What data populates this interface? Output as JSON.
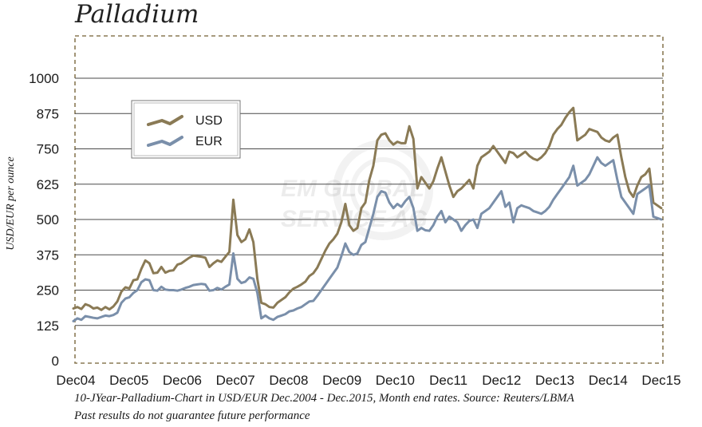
{
  "chart_data": {
    "type": "line",
    "title": "Palladium",
    "ylabel": "USD/EUR  per ounce",
    "xlabel": "",
    "x_start": "2004-12",
    "x_end": "2015-12",
    "ylim": [
      0,
      1000
    ],
    "yticks": [
      "0",
      "125",
      "250",
      "375",
      "500",
      "625",
      "750",
      "875",
      "1000"
    ],
    "xticks": [
      "Dec04",
      "Dec05",
      "Dec06",
      "Dec07",
      "Dec08",
      "Dec09",
      "Dec10",
      "Dec11",
      "Dec12",
      "Dec13",
      "Dec14",
      "Dec15"
    ],
    "grid": "horizontal",
    "legend_position": "top-left",
    "watermark": [
      "EM GLOBAL",
      "SERVICE AG"
    ],
    "footnote": [
      "10-JYear-Palladium-Chart in USD/EUR Dec.2004 - Dec.2015, Month end rates. Source: Reuters/LBMA",
      "Past results do not guarantee future performance"
    ],
    "series": [
      {
        "name": "USD",
        "color": "#8a7a55",
        "values": [
          185,
          190,
          183,
          200,
          195,
          185,
          188,
          180,
          190,
          182,
          192,
          210,
          245,
          260,
          256,
          285,
          288,
          325,
          355,
          345,
          310,
          312,
          332,
          312,
          318,
          320,
          340,
          345,
          355,
          365,
          372,
          370,
          368,
          365,
          332,
          345,
          355,
          350,
          368,
          385,
          570,
          445,
          420,
          430,
          465,
          420,
          290,
          205,
          200,
          190,
          188,
          205,
          215,
          225,
          242,
          255,
          262,
          270,
          280,
          300,
          310,
          330,
          360,
          390,
          415,
          430,
          450,
          490,
          555,
          480,
          460,
          470,
          540,
          560,
          640,
          690,
          780,
          800,
          805,
          780,
          765,
          775,
          770,
          770,
          830,
          785,
          610,
          650,
          630,
          610,
          635,
          680,
          720,
          670,
          620,
          580,
          600,
          610,
          625,
          640,
          610,
          690,
          720,
          730,
          740,
          760,
          740,
          720,
          700,
          740,
          735,
          720,
          730,
          740,
          725,
          715,
          710,
          720,
          735,
          760,
          800,
          820,
          835,
          860,
          880,
          895,
          780,
          790,
          800,
          820,
          815,
          810,
          790,
          780,
          775,
          790,
          800,
          720,
          650,
          600,
          580,
          620,
          650,
          660,
          680,
          560,
          550,
          540
        ]
      },
      {
        "name": "EUR",
        "color": "#7a8faa",
        "values": [
          140,
          150,
          145,
          158,
          155,
          152,
          150,
          155,
          160,
          158,
          162,
          170,
          205,
          220,
          225,
          240,
          250,
          278,
          288,
          285,
          250,
          248,
          262,
          252,
          250,
          250,
          248,
          252,
          258,
          262,
          268,
          270,
          272,
          270,
          248,
          250,
          258,
          252,
          262,
          270,
          380,
          290,
          275,
          280,
          295,
          290,
          240,
          150,
          160,
          150,
          145,
          155,
          160,
          165,
          175,
          178,
          185,
          190,
          200,
          210,
          212,
          230,
          250,
          270,
          290,
          310,
          330,
          370,
          415,
          385,
          375,
          380,
          410,
          420,
          470,
          520,
          580,
          600,
          595,
          560,
          540,
          555,
          545,
          565,
          580,
          540,
          460,
          470,
          462,
          460,
          480,
          510,
          530,
          490,
          510,
          500,
          490,
          460,
          480,
          495,
          500,
          470,
          520,
          530,
          540,
          560,
          580,
          600,
          545,
          560,
          490,
          540,
          550,
          545,
          540,
          530,
          525,
          520,
          530,
          545,
          570,
          590,
          610,
          630,
          650,
          690,
          620,
          630,
          640,
          660,
          690,
          720,
          700,
          690,
          700,
          710,
          640,
          580,
          560,
          540,
          520,
          590,
          600,
          610,
          620,
          510,
          505,
          500
        ]
      }
    ]
  }
}
